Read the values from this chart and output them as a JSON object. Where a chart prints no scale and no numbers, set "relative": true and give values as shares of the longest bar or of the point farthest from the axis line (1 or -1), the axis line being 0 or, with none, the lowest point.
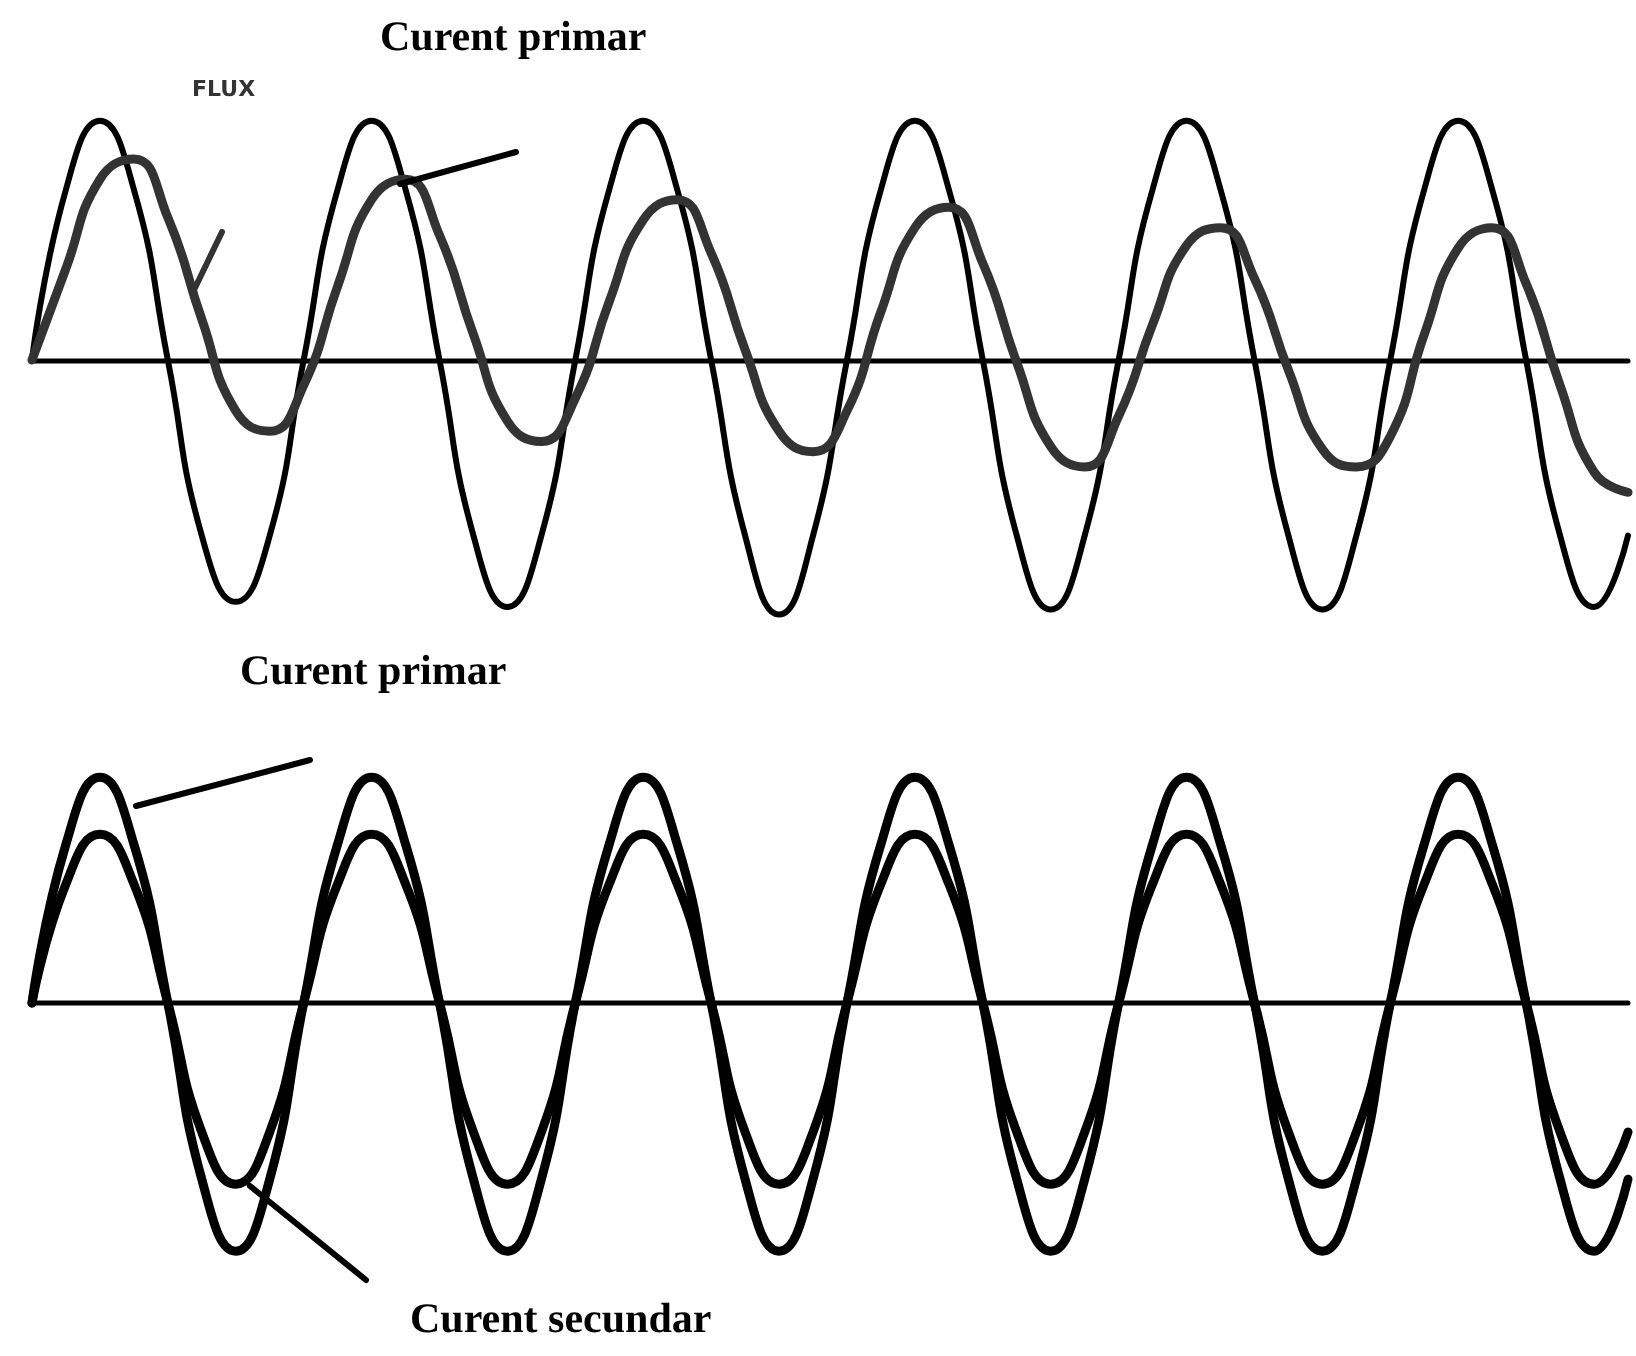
{
  "chart_data": [
    {
      "type": "line",
      "relative": true,
      "categories": [
        null,
        null,
        null,
        null,
        null,
        null,
        null,
        null,
        null,
        null,
        null,
        null,
        null,
        null,
        null,
        null,
        null,
        null,
        null,
        null,
        null,
        null,
        null,
        null,
        null,
        null,
        null,
        null,
        null,
        null,
        null,
        null,
        null,
        null,
        null,
        null,
        null,
        null,
        null,
        null,
        null,
        null,
        null,
        null,
        null,
        null,
        null,
        null
      ],
      "series": [
        {
          "name": "Curent primar",
          "color": "#000000",
          "values": [
            0,
            0.67,
            0.94,
            0.67,
            0,
            -0.69,
            -0.95,
            -0.69,
            0,
            0.67,
            0.94,
            0.67,
            0,
            -0.69,
            -0.97,
            -0.69,
            0,
            0.67,
            0.94,
            0.67,
            0,
            -0.69,
            -1,
            -0.69,
            0,
            0.67,
            0.94,
            0.67,
            0,
            -0.69,
            -0.98,
            -0.69,
            0,
            0.67,
            0.94,
            0.67,
            0,
            -0.69,
            -0.98,
            -0.69,
            0,
            0.67,
            0.94,
            0.67,
            0,
            -0.69,
            -0.97,
            -0.69
          ]
        },
        {
          "name": "FLUX",
          "color": "#333333",
          "values": [
            0,
            0.36,
            0.71,
            0.79,
            0.56,
            0.16,
            -0.2,
            -0.28,
            -0.1,
            0.29,
            0.63,
            0.71,
            0.49,
            0.1,
            -0.24,
            -0.32,
            -0.15,
            0.23,
            0.55,
            0.63,
            0.42,
            0.04,
            -0.28,
            -0.36,
            -0.2,
            0.19,
            0.52,
            0.6,
            0.38,
            -0.01,
            -0.34,
            -0.42,
            -0.22,
            0.14,
            0.45,
            0.52,
            0.32,
            -0.04,
            -0.35,
            -0.42,
            -0.3,
            0.1,
            0.44,
            0.52,
            0.3,
            -0.1,
            -0.44,
            -0.52
          ]
        }
      ]
    },
    {
      "type": "line",
      "relative": true,
      "categories": [
        null,
        null,
        null,
        null,
        null,
        null,
        null,
        null,
        null,
        null,
        null,
        null,
        null,
        null,
        null,
        null,
        null,
        null,
        null,
        null,
        null,
        null,
        null,
        null,
        null,
        null,
        null,
        null,
        null,
        null,
        null,
        null,
        null,
        null,
        null,
        null,
        null,
        null,
        null,
        null,
        null,
        null,
        null,
        null,
        null,
        null,
        null,
        null
      ],
      "series": [
        {
          "name": "Curent primar",
          "color": "#000000",
          "values": [
            0,
            0.64,
            0.91,
            0.64,
            0,
            -0.71,
            -1,
            -0.71,
            0,
            0.64,
            0.91,
            0.64,
            0,
            -0.71,
            -1,
            -0.71,
            0,
            0.64,
            0.91,
            0.64,
            0,
            -0.71,
            -1,
            -0.71,
            0,
            0.64,
            0.91,
            0.64,
            0,
            -0.71,
            -1,
            -0.71,
            0,
            0.64,
            0.91,
            0.64,
            0,
            -0.71,
            -1,
            -0.71,
            0,
            0.64,
            0.91,
            0.64,
            0,
            -0.71,
            -1,
            -0.71
          ]
        },
        {
          "name": "Curent secundar",
          "color": "#000000",
          "values": [
            0,
            0.48,
            0.68,
            0.48,
            0,
            -0.52,
            -0.73,
            -0.52,
            0,
            0.48,
            0.68,
            0.48,
            0,
            -0.52,
            -0.73,
            -0.52,
            0,
            0.48,
            0.68,
            0.48,
            0,
            -0.52,
            -0.73,
            -0.52,
            0,
            0.48,
            0.68,
            0.48,
            0,
            -0.52,
            -0.73,
            -0.52,
            0,
            0.48,
            0.68,
            0.48,
            0,
            -0.52,
            -0.73,
            -0.52,
            0,
            0.48,
            0.68,
            0.48,
            0,
            -0.52,
            -0.73,
            -0.52
          ]
        }
      ]
    }
  ]
}
